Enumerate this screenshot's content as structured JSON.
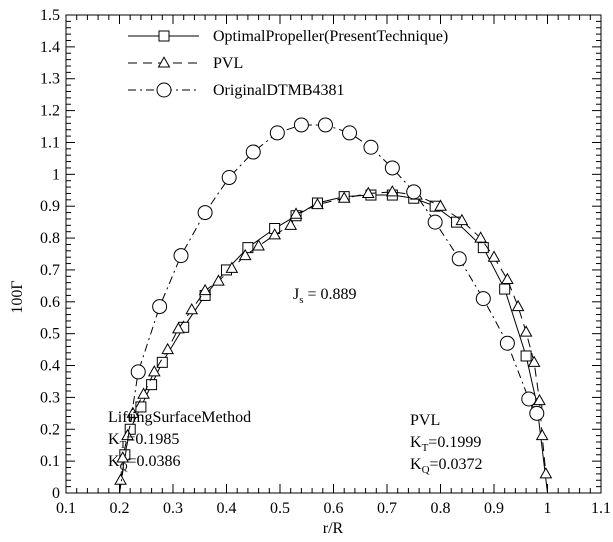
{
  "chart_data": {
    "type": "line",
    "xlabel": "r/R",
    "ylabel": "100Γ",
    "xlim": [
      0.1,
      1.1
    ],
    "ylim": [
      0,
      1.5
    ],
    "x_ticks": [
      "0.1",
      "0.2",
      "0.3",
      "0.4",
      "0.5",
      "0.6",
      "0.7",
      "0.8",
      "0.9",
      "1",
      "1.1"
    ],
    "y_ticks": [
      "0",
      "0.1",
      "0.2",
      "0.3",
      "0.4",
      "0.5",
      "0.6",
      "0.7",
      "0.8",
      "0.9",
      "1",
      "1.1",
      "1.2",
      "1.3",
      "1.4",
      "1.5"
    ],
    "grid": false,
    "legend_position": "top-left",
    "series": [
      {
        "name": "OptimalPropeller(PresentTechnique)",
        "line_style": "solid",
        "marker": "square",
        "x": [
          0.2,
          0.21,
          0.22,
          0.24,
          0.26,
          0.28,
          0.32,
          0.36,
          0.4,
          0.44,
          0.49,
          0.53,
          0.57,
          0.62,
          0.67,
          0.71,
          0.75,
          0.79,
          0.83,
          0.88,
          0.92,
          0.96,
          0.98,
          1.0
        ],
        "y": [
          0.0,
          0.12,
          0.2,
          0.27,
          0.34,
          0.41,
          0.52,
          0.62,
          0.7,
          0.77,
          0.83,
          0.87,
          0.91,
          0.93,
          0.935,
          0.935,
          0.925,
          0.9,
          0.85,
          0.77,
          0.64,
          0.43,
          0.28,
          0.0
        ]
      },
      {
        "name": "PVL",
        "line_style": "dashed",
        "marker": "triangle",
        "x": [
          0.202,
          0.206,
          0.215,
          0.225,
          0.245,
          0.265,
          0.29,
          0.31,
          0.335,
          0.36,
          0.385,
          0.41,
          0.435,
          0.46,
          0.49,
          0.52,
          0.53,
          0.57,
          0.62,
          0.665,
          0.71,
          0.755,
          0.8,
          0.84,
          0.875,
          0.9,
          0.925,
          0.945,
          0.96,
          0.975,
          0.985,
          0.99,
          0.997
        ],
        "y": [
          0.04,
          0.11,
          0.18,
          0.25,
          0.31,
          0.38,
          0.45,
          0.515,
          0.575,
          0.635,
          0.665,
          0.705,
          0.745,
          0.775,
          0.81,
          0.84,
          0.875,
          0.905,
          0.925,
          0.94,
          0.945,
          0.935,
          0.9,
          0.855,
          0.8,
          0.74,
          0.67,
          0.585,
          0.505,
          0.41,
          0.29,
          0.18,
          0.06
        ]
      },
      {
        "name": "OriginalDTMB4381",
        "line_style": "dashdot",
        "marker": "circle",
        "x": [
          0.2,
          0.235,
          0.275,
          0.315,
          0.36,
          0.405,
          0.45,
          0.495,
          0.54,
          0.585,
          0.63,
          0.67,
          0.71,
          0.75,
          0.79,
          0.835,
          0.88,
          0.925,
          0.965,
          0.98
        ],
        "y": [
          0.0,
          0.38,
          0.585,
          0.745,
          0.88,
          0.99,
          1.07,
          1.13,
          1.155,
          1.155,
          1.13,
          1.085,
          1.02,
          0.945,
          0.85,
          0.735,
          0.61,
          0.47,
          0.295,
          0.25
        ]
      }
    ],
    "annotations": {
      "js": {
        "main": "J",
        "sub": "s",
        "rest": " = 0.889"
      },
      "left_block": {
        "title": "LiftingSurfaceMethod",
        "kt": {
          "main": "K",
          "sub": "T",
          "rest": "=0.1985"
        },
        "kq": {
          "main": "K",
          "sub": "Q",
          "rest": "=0.0386"
        }
      },
      "right_block": {
        "title": "PVL",
        "kt": {
          "main": "K",
          "sub": "T",
          "rest": "=0.1999"
        },
        "kq": {
          "main": "K",
          "sub": "Q",
          "rest": "=0.0372"
        }
      }
    }
  }
}
